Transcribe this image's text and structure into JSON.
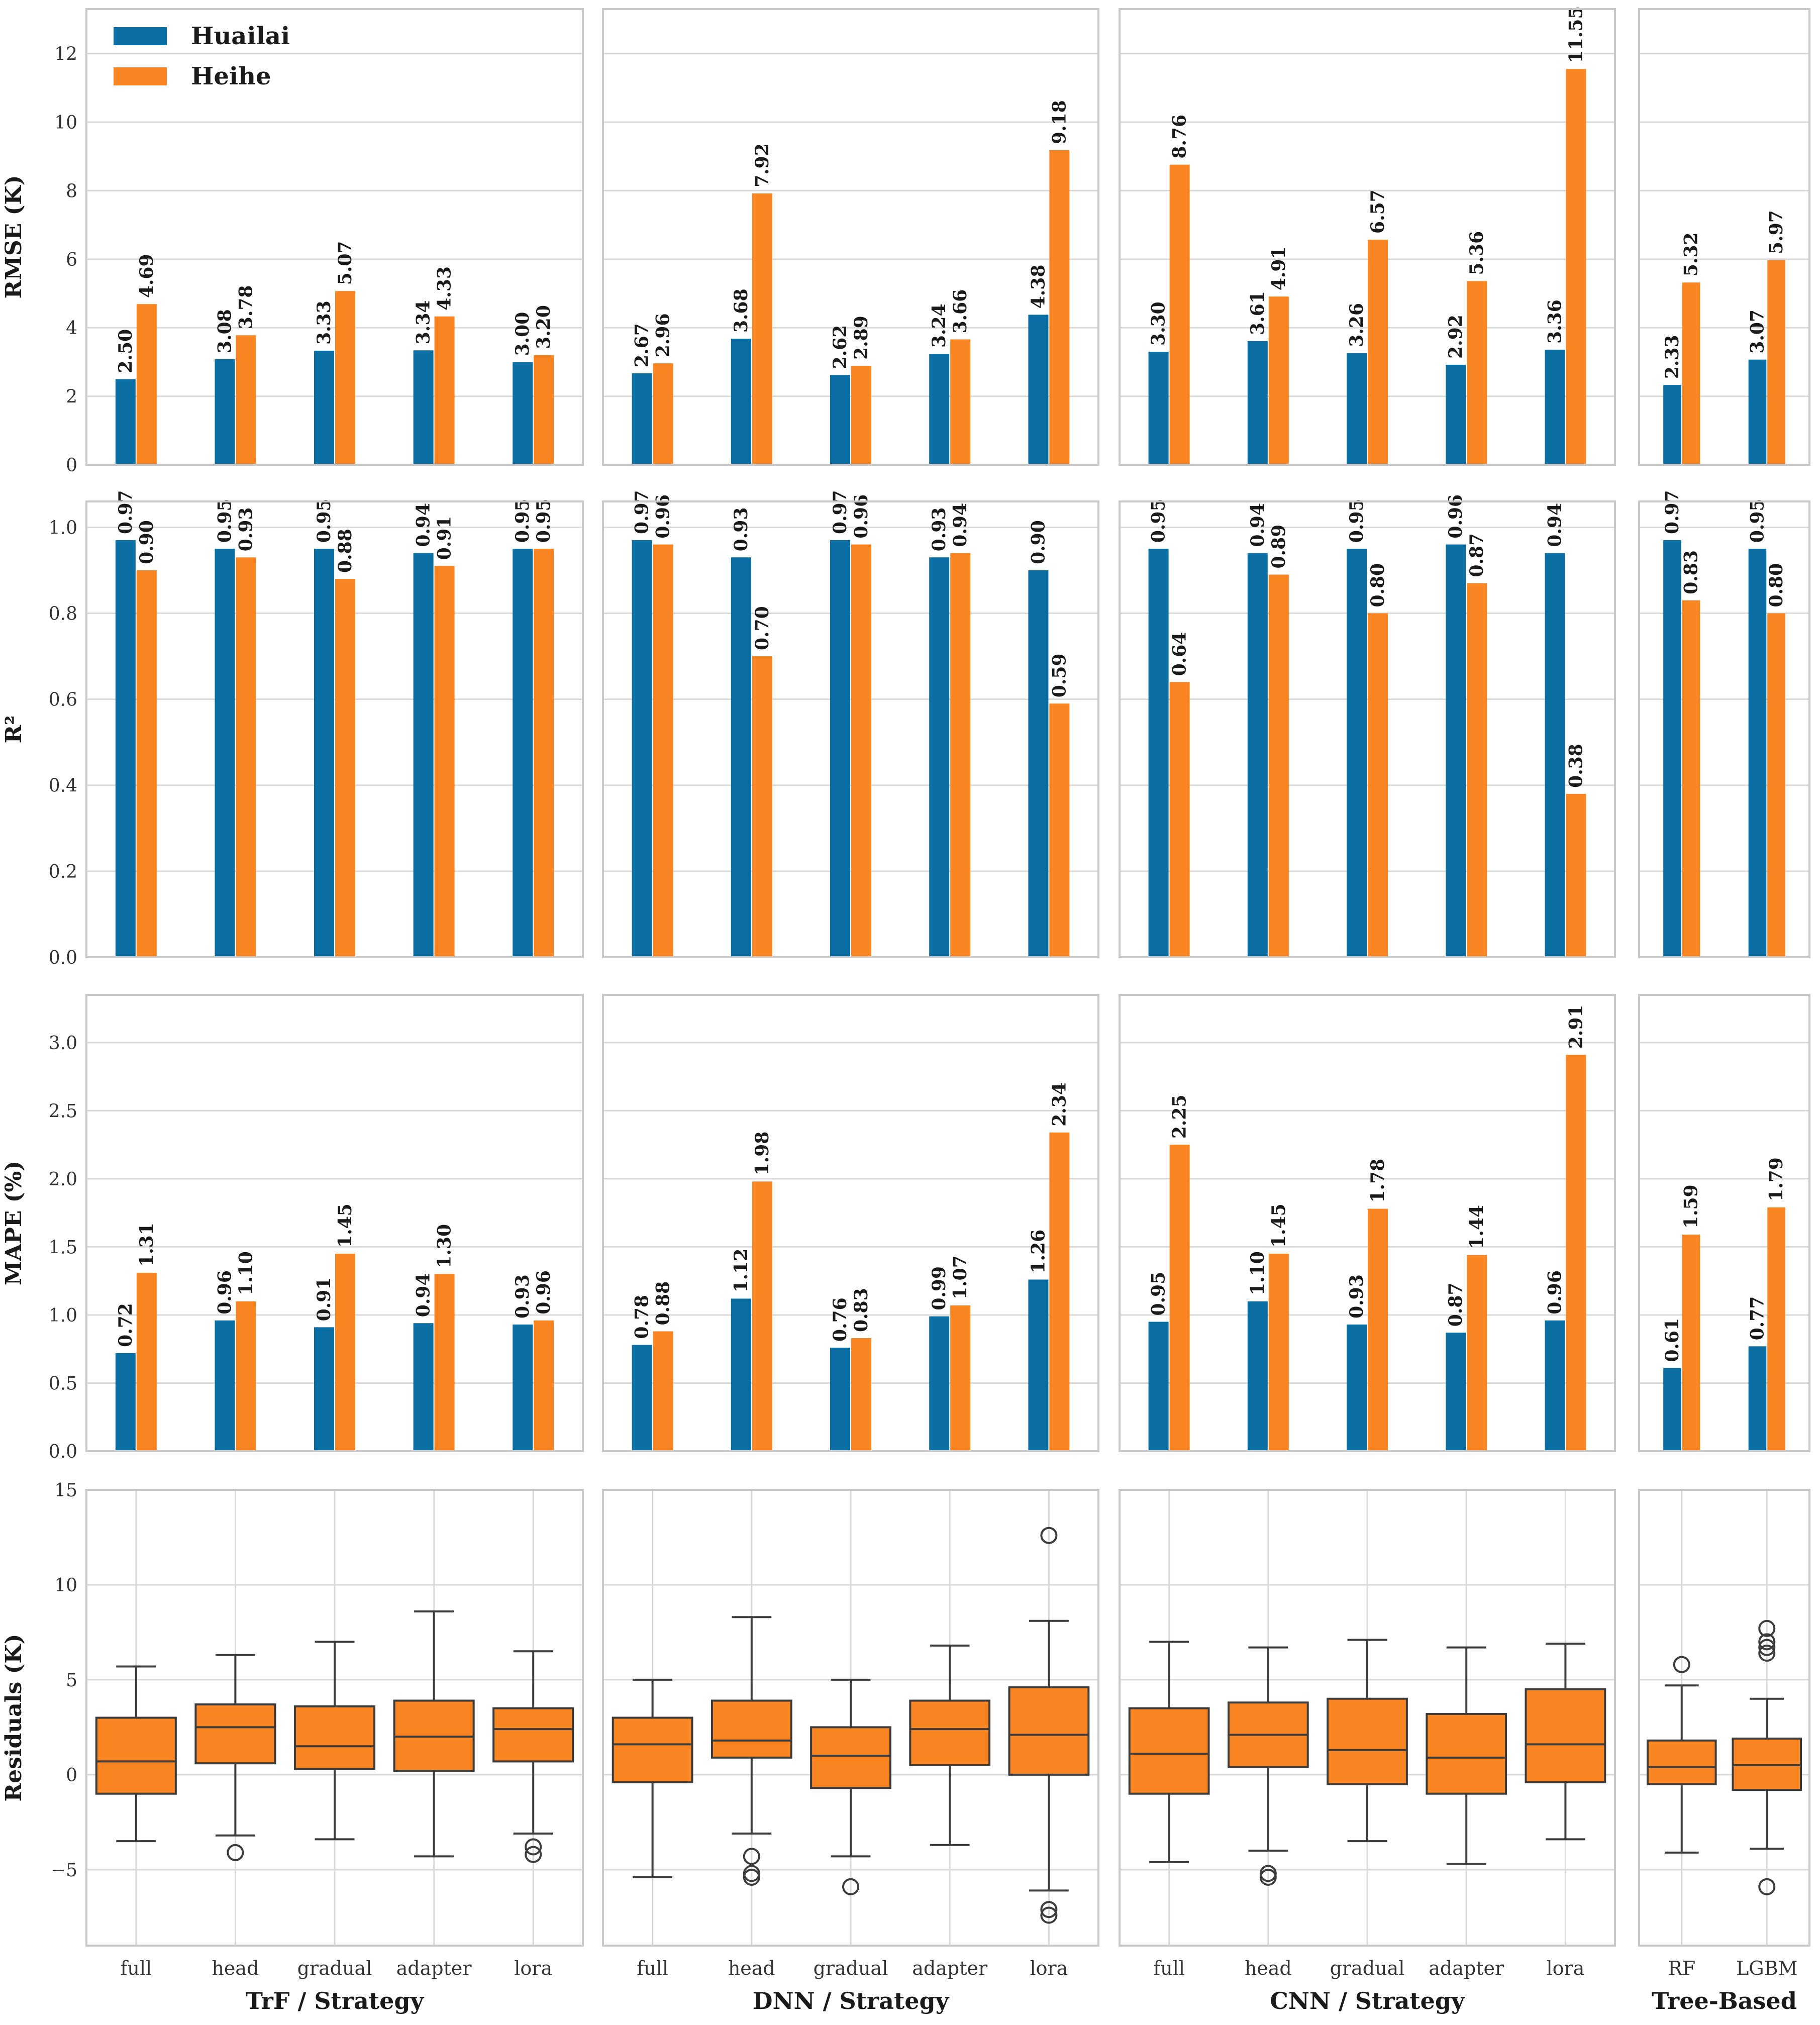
{
  "colors": {
    "huailai": "#0b6fa4",
    "heihe": "#f98422",
    "grid": "#d9d9d9",
    "frame": "#c8c8c8",
    "box_line": "#3c3c3c"
  },
  "legend": {
    "items": [
      {
        "label": "Huailai",
        "color": "#0b6fa4"
      },
      {
        "label": "Heihe",
        "color": "#f98422"
      }
    ],
    "placement": "top-left"
  },
  "chart_data": [
    {
      "type": "bar",
      "metric": "RMSE",
      "ylabel": "RMSE (K)",
      "ylim": [
        0,
        13.3
      ],
      "yticks": [
        0,
        2,
        4,
        6,
        8,
        10,
        12
      ],
      "tick_labels": [
        "0",
        "2",
        "4",
        "6",
        "8",
        "10",
        "12"
      ],
      "grid": true,
      "panels": [
        {
          "xlabel": "TrF / Strategy",
          "categories": [
            "full",
            "head",
            "gradual",
            "adapter",
            "lora"
          ],
          "series": [
            {
              "name": "Huailai",
              "values": [
                2.5,
                3.08,
                3.33,
                3.34,
                3.0
              ],
              "labels": [
                "2.50",
                "3.08",
                "3.33",
                "3.34",
                "3.00"
              ]
            },
            {
              "name": "Heihe",
              "values": [
                4.69,
                3.78,
                5.07,
                4.33,
                3.2
              ],
              "labels": [
                "4.69",
                "3.78",
                "5.07",
                "4.33",
                "3.20"
              ]
            }
          ]
        },
        {
          "xlabel": "DNN / Strategy",
          "categories": [
            "full",
            "head",
            "gradual",
            "adapter",
            "lora"
          ],
          "series": [
            {
              "name": "Huailai",
              "values": [
                2.67,
                3.68,
                2.62,
                3.24,
                4.38
              ],
              "labels": [
                "2.67",
                "3.68",
                "2.62",
                "3.24",
                "4.38"
              ]
            },
            {
              "name": "Heihe",
              "values": [
                2.96,
                7.92,
                2.89,
                3.66,
                9.18
              ],
              "labels": [
                "2.96",
                "7.92",
                "2.89",
                "3.66",
                "9.18"
              ]
            }
          ]
        },
        {
          "xlabel": "CNN / Strategy",
          "categories": [
            "full",
            "head",
            "gradual",
            "adapter",
            "lora"
          ],
          "series": [
            {
              "name": "Huailai",
              "values": [
                3.3,
                3.61,
                3.26,
                2.92,
                3.36
              ],
              "labels": [
                "3.30",
                "3.61",
                "3.26",
                "2.92",
                "3.36"
              ]
            },
            {
              "name": "Heihe",
              "values": [
                8.76,
                4.91,
                6.57,
                5.36,
                11.55
              ],
              "labels": [
                "8.76",
                "4.91",
                "6.57",
                "5.36",
                "11.55"
              ]
            }
          ]
        },
        {
          "xlabel": "Tree-Based",
          "categories": [
            "RF",
            "LGBM"
          ],
          "series": [
            {
              "name": "Huailai",
              "values": [
                2.33,
                3.07
              ],
              "labels": [
                "2.33",
                "3.07"
              ]
            },
            {
              "name": "Heihe",
              "values": [
                5.32,
                5.97
              ],
              "labels": [
                "5.32",
                "5.97"
              ]
            }
          ]
        }
      ]
    },
    {
      "type": "bar",
      "metric": "R2",
      "ylabel": "R²",
      "ylim": [
        0,
        1.06
      ],
      "yticks": [
        0,
        0.2,
        0.4,
        0.6,
        0.8,
        1.0
      ],
      "tick_labels": [
        "0.0",
        "0.2",
        "0.4",
        "0.6",
        "0.8",
        "1.0"
      ],
      "grid": true,
      "panels": [
        {
          "xlabel": "TrF / Strategy",
          "categories": [
            "full",
            "head",
            "gradual",
            "adapter",
            "lora"
          ],
          "series": [
            {
              "name": "Huailai",
              "values": [
                0.97,
                0.95,
                0.95,
                0.94,
                0.95
              ],
              "labels": [
                "0.97",
                "0.95",
                "0.95",
                "0.94",
                "0.95"
              ]
            },
            {
              "name": "Heihe",
              "values": [
                0.9,
                0.93,
                0.88,
                0.91,
                0.95
              ],
              "labels": [
                "0.90",
                "0.93",
                "0.88",
                "0.91",
                "0.95"
              ]
            }
          ]
        },
        {
          "xlabel": "DNN / Strategy",
          "categories": [
            "full",
            "head",
            "gradual",
            "adapter",
            "lora"
          ],
          "series": [
            {
              "name": "Huailai",
              "values": [
                0.97,
                0.93,
                0.97,
                0.93,
                0.9
              ],
              "labels": [
                "0.97",
                "0.93",
                "0.97",
                "0.93",
                "0.90"
              ]
            },
            {
              "name": "Heihe",
              "values": [
                0.96,
                0.7,
                0.96,
                0.94,
                0.59
              ],
              "labels": [
                "0.96",
                "0.70",
                "0.96",
                "0.94",
                "0.59"
              ]
            }
          ]
        },
        {
          "xlabel": "CNN / Strategy",
          "categories": [
            "full",
            "head",
            "gradual",
            "adapter",
            "lora"
          ],
          "series": [
            {
              "name": "Huailai",
              "values": [
                0.95,
                0.94,
                0.95,
                0.96,
                0.94
              ],
              "labels": [
                "0.95",
                "0.94",
                "0.95",
                "0.96",
                "0.94"
              ]
            },
            {
              "name": "Heihe",
              "values": [
                0.64,
                0.89,
                0.8,
                0.87,
                0.38
              ],
              "labels": [
                "0.64",
                "0.89",
                "0.80",
                "0.87",
                "0.38"
              ]
            }
          ]
        },
        {
          "xlabel": "Tree-Based",
          "categories": [
            "RF",
            "LGBM"
          ],
          "series": [
            {
              "name": "Huailai",
              "values": [
                0.97,
                0.95
              ],
              "labels": [
                "0.97",
                "0.95"
              ]
            },
            {
              "name": "Heihe",
              "values": [
                0.83,
                0.8
              ],
              "labels": [
                "0.83",
                "0.80"
              ]
            }
          ]
        }
      ]
    },
    {
      "type": "bar",
      "metric": "MAPE",
      "ylabel": "MAPE (%)",
      "ylim": [
        0,
        3.35
      ],
      "yticks": [
        0,
        0.5,
        1.0,
        1.5,
        2.0,
        2.5,
        3.0
      ],
      "tick_labels": [
        "0.0",
        "0.5",
        "1.0",
        "1.5",
        "2.0",
        "2.5",
        "3.0"
      ],
      "grid": true,
      "panels": [
        {
          "xlabel": "TrF / Strategy",
          "categories": [
            "full",
            "head",
            "gradual",
            "adapter",
            "lora"
          ],
          "series": [
            {
              "name": "Huailai",
              "values": [
                0.72,
                0.96,
                0.91,
                0.94,
                0.93
              ],
              "labels": [
                "0.72",
                "0.96",
                "0.91",
                "0.94",
                "0.93"
              ]
            },
            {
              "name": "Heihe",
              "values": [
                1.31,
                1.1,
                1.45,
                1.3,
                0.96
              ],
              "labels": [
                "1.31",
                "1.10",
                "1.45",
                "1.30",
                "0.96"
              ]
            }
          ]
        },
        {
          "xlabel": "DNN / Strategy",
          "categories": [
            "full",
            "head",
            "gradual",
            "adapter",
            "lora"
          ],
          "series": [
            {
              "name": "Huailai",
              "values": [
                0.78,
                1.12,
                0.76,
                0.99,
                1.26
              ],
              "labels": [
                "0.78",
                "1.12",
                "0.76",
                "0.99",
                "1.26"
              ]
            },
            {
              "name": "Heihe",
              "values": [
                0.88,
                1.98,
                0.83,
                1.07,
                2.34
              ],
              "labels": [
                "0.88",
                "1.98",
                "0.83",
                "1.07",
                "2.34"
              ]
            }
          ]
        },
        {
          "xlabel": "CNN / Strategy",
          "categories": [
            "full",
            "head",
            "gradual",
            "adapter",
            "lora"
          ],
          "series": [
            {
              "name": "Huailai",
              "values": [
                0.95,
                1.1,
                0.93,
                0.87,
                0.96
              ],
              "labels": [
                "0.95",
                "1.10",
                "0.93",
                "0.87",
                "0.96"
              ]
            },
            {
              "name": "Heihe",
              "values": [
                2.25,
                1.45,
                1.78,
                1.44,
                2.91
              ],
              "labels": [
                "2.25",
                "1.45",
                "1.78",
                "1.44",
                "2.91"
              ]
            }
          ]
        },
        {
          "xlabel": "Tree-Based",
          "categories": [
            "RF",
            "LGBM"
          ],
          "series": [
            {
              "name": "Huailai",
              "values": [
                0.61,
                0.77
              ],
              "labels": [
                "0.61",
                "0.77"
              ]
            },
            {
              "name": "Heihe",
              "values": [
                1.59,
                1.79
              ],
              "labels": [
                "1.59",
                "1.79"
              ]
            }
          ]
        }
      ]
    },
    {
      "type": "box",
      "metric": "Residuals",
      "ylabel": "Residuals (K)",
      "ylim": [
        -9,
        15
      ],
      "yticks": [
        -5,
        0,
        5,
        10,
        15
      ],
      "tick_labels": [
        "−5",
        "0",
        "5",
        "10",
        "15"
      ],
      "grid": true,
      "panels": [
        {
          "xlabel": "TrF / Strategy",
          "categories": [
            "full",
            "head",
            "gradual",
            "adapter",
            "lora"
          ],
          "boxes": [
            {
              "whislo": -3.5,
              "q1": -1.0,
              "med": 0.7,
              "q3": 3.0,
              "whishi": 5.7,
              "fliers": []
            },
            {
              "whislo": -3.2,
              "q1": 0.6,
              "med": 2.5,
              "q3": 3.7,
              "whishi": 6.3,
              "fliers": [
                -4.1
              ]
            },
            {
              "whislo": -3.4,
              "q1": 0.3,
              "med": 1.5,
              "q3": 3.6,
              "whishi": 7.0,
              "fliers": []
            },
            {
              "whislo": -4.3,
              "q1": 0.2,
              "med": 2.0,
              "q3": 3.9,
              "whishi": 8.6,
              "fliers": []
            },
            {
              "whislo": -3.1,
              "q1": 0.7,
              "med": 2.4,
              "q3": 3.5,
              "whishi": 6.5,
              "fliers": [
                -3.8,
                -4.2
              ]
            }
          ]
        },
        {
          "xlabel": "DNN / Strategy",
          "categories": [
            "full",
            "head",
            "gradual",
            "adapter",
            "lora"
          ],
          "boxes": [
            {
              "whislo": -5.4,
              "q1": -0.4,
              "med": 1.6,
              "q3": 3.0,
              "whishi": 5.0,
              "fliers": []
            },
            {
              "whislo": -3.1,
              "q1": 0.9,
              "med": 1.8,
              "q3": 3.9,
              "whishi": 8.3,
              "fliers": [
                -4.3,
                -5.2,
                -5.4
              ]
            },
            {
              "whislo": -4.3,
              "q1": -0.7,
              "med": 1.0,
              "q3": 2.5,
              "whishi": 5.0,
              "fliers": [
                -5.9
              ]
            },
            {
              "whislo": -3.7,
              "q1": 0.5,
              "med": 2.4,
              "q3": 3.9,
              "whishi": 6.8,
              "fliers": []
            },
            {
              "whislo": -6.1,
              "q1": 0.0,
              "med": 2.1,
              "q3": 4.6,
              "whishi": 8.1,
              "fliers": [
                12.6,
                -7.1,
                -7.4
              ]
            }
          ]
        },
        {
          "xlabel": "CNN / Strategy",
          "categories": [
            "full",
            "head",
            "gradual",
            "adapter",
            "lora"
          ],
          "boxes": [
            {
              "whislo": -4.6,
              "q1": -1.0,
              "med": 1.1,
              "q3": 3.5,
              "whishi": 7.0,
              "fliers": []
            },
            {
              "whislo": -4.0,
              "q1": 0.4,
              "med": 2.1,
              "q3": 3.8,
              "whishi": 6.7,
              "fliers": [
                -5.2,
                -5.4
              ]
            },
            {
              "whislo": -3.5,
              "q1": -0.5,
              "med": 1.3,
              "q3": 4.0,
              "whishi": 7.1,
              "fliers": []
            },
            {
              "whislo": -4.7,
              "q1": -1.0,
              "med": 0.9,
              "q3": 3.2,
              "whishi": 6.7,
              "fliers": []
            },
            {
              "whislo": -3.4,
              "q1": -0.4,
              "med": 1.6,
              "q3": 4.5,
              "whishi": 6.9,
              "fliers": []
            }
          ]
        },
        {
          "xlabel": "Tree-Based",
          "categories": [
            "RF",
            "LGBM"
          ],
          "boxes": [
            {
              "whislo": -4.1,
              "q1": -0.5,
              "med": 0.4,
              "q3": 1.8,
              "whishi": 4.7,
              "fliers": [
                5.8
              ]
            },
            {
              "whislo": -3.9,
              "q1": -0.8,
              "med": 0.5,
              "q3": 1.9,
              "whishi": 4.0,
              "fliers": [
                7.7,
                7.0,
                6.7,
                6.4,
                -5.9
              ]
            }
          ]
        }
      ]
    }
  ]
}
